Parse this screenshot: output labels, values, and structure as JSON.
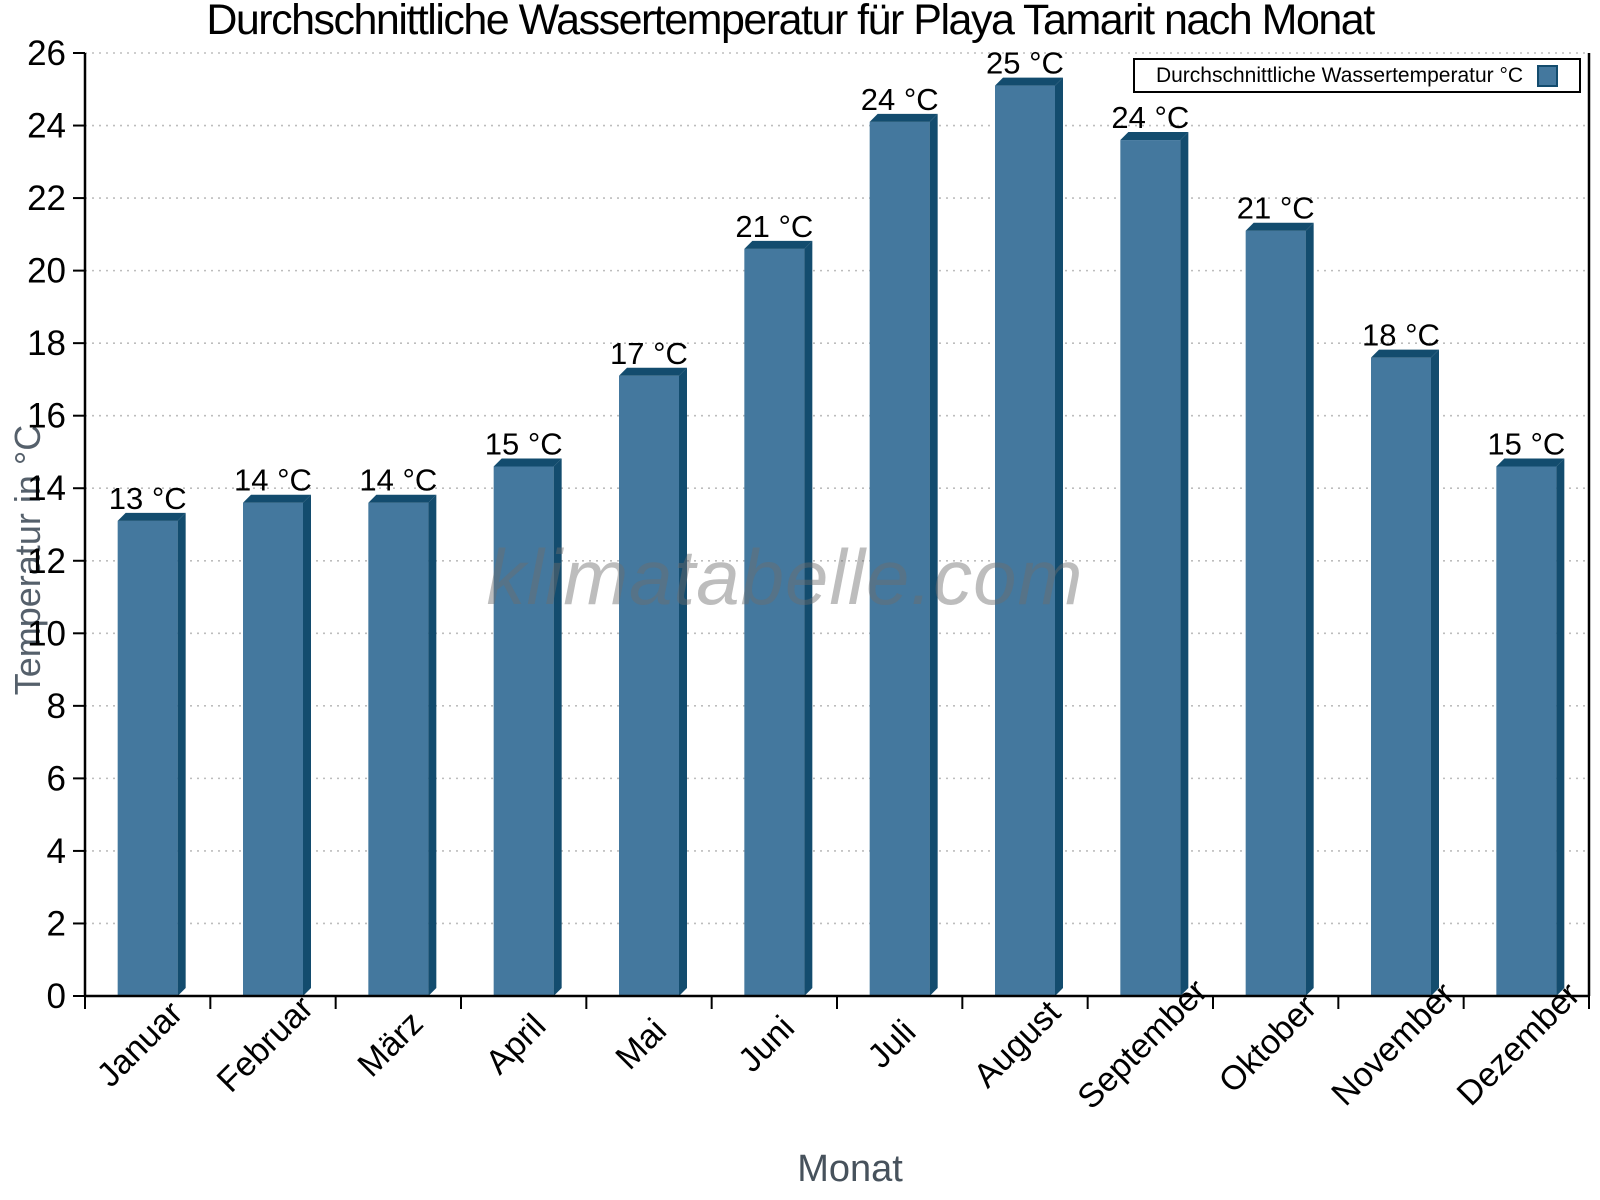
{
  "chart_data": {
    "type": "bar",
    "title": "Durchschnittliche Wassertemperatur für Playa Tamarit nach Monat",
    "xlabel": "Monat",
    "ylabel": "Temperatur in °C",
    "watermark": "klimatabelle.com",
    "legend": [
      "Durchschnittliche Wassertemperatur °C"
    ],
    "legend_position": "top-right",
    "grid": "dotted-horizontal",
    "categories": [
      "Januar",
      "Februar",
      "März",
      "April",
      "Mai",
      "Juni",
      "Juli",
      "August",
      "September",
      "Oktober",
      "November",
      "Dezember"
    ],
    "values": [
      13.1,
      13.6,
      13.6,
      14.6,
      17.1,
      20.6,
      24.1,
      25.1,
      23.6,
      21.1,
      17.6,
      14.6
    ],
    "value_labels": [
      "13 °C",
      "14 °C",
      "14 °C",
      "15 °C",
      "17 °C",
      "21 °C",
      "24 °C",
      "25 °C",
      "24 °C",
      "21 °C",
      "18 °C",
      "15 °C"
    ],
    "ylim": [
      0,
      26
    ],
    "ytick_step": 2,
    "yticks": [
      0,
      2,
      4,
      6,
      8,
      10,
      12,
      14,
      16,
      18,
      20,
      22,
      24,
      26
    ],
    "colors": {
      "bar_face": "#44789E",
      "bar_edge": "#134C6E",
      "grid": "#bdbdbd",
      "axis": "#000000",
      "axis_title": "#4C575F",
      "watermark_gray": "#c3c3c3"
    }
  }
}
